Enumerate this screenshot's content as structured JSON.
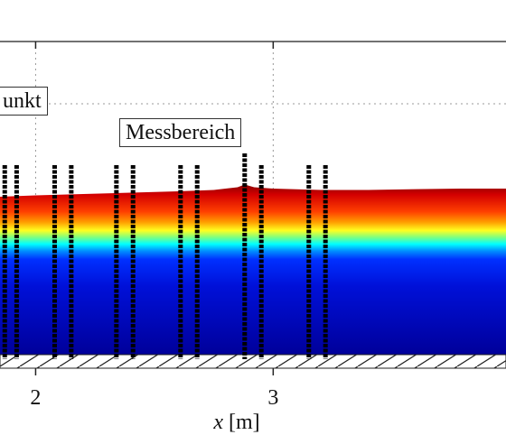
{
  "chart_data": {
    "type": "heatmap",
    "title": "",
    "xlabel_var": "x",
    "xlabel_unit": "[m]",
    "xlim": [
      1.85,
      3.98
    ],
    "x_ticks": [
      2,
      3
    ],
    "x_tick_labels": [
      "2",
      "3"
    ],
    "grid": true,
    "annotations": [
      {
        "text": "unkt"
      },
      {
        "text": "Messbereich"
      }
    ],
    "measurement_rods_x": [
      1.87,
      1.92,
      2.08,
      2.15,
      2.34,
      2.41,
      2.61,
      2.68,
      2.88,
      2.95,
      3.15,
      3.22
    ],
    "colormap": "jet",
    "surface_profile_x": [
      1.85,
      2.0,
      2.2,
      2.4,
      2.6,
      2.75,
      2.85,
      2.88,
      2.92,
      3.0,
      3.2,
      3.4,
      3.6,
      3.8,
      3.98
    ],
    "surface_profile_level": [
      0.86,
      0.865,
      0.87,
      0.875,
      0.88,
      0.885,
      0.895,
      0.905,
      0.895,
      0.89,
      0.885,
      0.885,
      0.888,
      0.89,
      0.89
    ]
  }
}
